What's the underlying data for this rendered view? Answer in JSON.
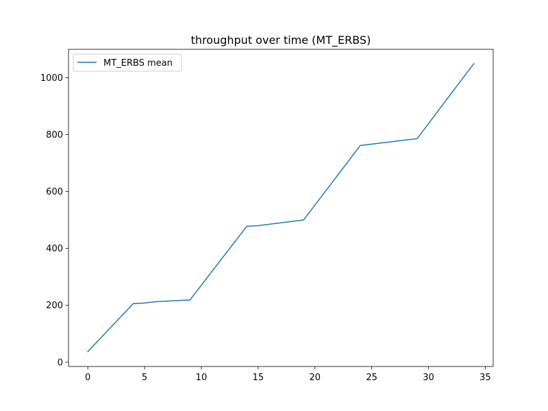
{
  "chart_data": {
    "type": "line",
    "title": "throughput over time (MT_ERBS)",
    "xlabel": "",
    "ylabel": "",
    "xlim": [
      -1.7,
      35.7
    ],
    "ylim": [
      -15,
      1100
    ],
    "x_ticks": [
      0,
      5,
      10,
      15,
      20,
      25,
      30,
      35
    ],
    "y_ticks": [
      0,
      200,
      400,
      600,
      800,
      1000
    ],
    "grid": false,
    "legend_position": "upper-left",
    "series": [
      {
        "name": "MT_ERBS mean",
        "color": "#1f77b4",
        "x": [
          0,
          4,
          5,
          6,
          9,
          14,
          15,
          19,
          24,
          29,
          34
        ],
        "y": [
          37,
          206,
          208,
          213,
          219,
          478,
          480,
          500,
          762,
          786,
          1050
        ]
      }
    ]
  }
}
